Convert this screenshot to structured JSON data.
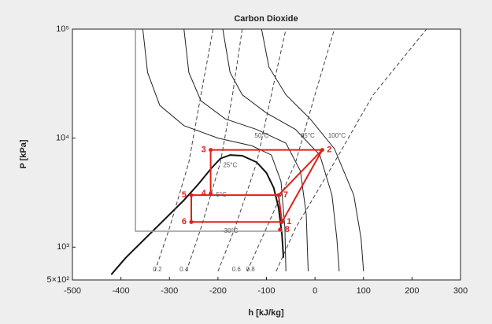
{
  "chart_data": {
    "type": "line",
    "title": "Carbon Dioxide",
    "xlabel": "h [kJ/kg]",
    "ylabel": "P [kPa]",
    "xlim": [
      -500,
      300
    ],
    "xticks": [
      -500,
      -400,
      -300,
      -200,
      -100,
      0,
      100,
      200,
      300
    ],
    "ylim": [
      500,
      100000
    ],
    "ylog": true,
    "yticks": [
      {
        "value": 500,
        "label": "5×10²"
      },
      {
        "value": 1000,
        "label": "10³"
      },
      {
        "value": 10000,
        "label": "10⁴"
      },
      {
        "value": 100000,
        "label": "10⁵"
      }
    ],
    "series": [
      {
        "color": "#111111",
        "width": 2,
        "dash": false,
        "x": [
          -420,
          -390,
          -350,
          -310,
          -270,
          -240,
          -215,
          -195,
          -175,
          -150,
          -120,
          -100,
          -85,
          -75,
          -68,
          -65
        ],
        "y": [
          560,
          800,
          1200,
          1800,
          2700,
          3800,
          5200,
          6500,
          7000,
          6900,
          6000,
          4800,
          3500,
          2300,
          1300,
          800
        ]
      },
      {
        "color": "#999999",
        "width": 1.5,
        "dash": false,
        "x": [
          -370,
          -370,
          -65
        ],
        "y": [
          100000,
          1400,
          1400
        ]
      },
      {
        "color": "#222222",
        "width": 1,
        "dash": false,
        "x": [
          -355,
          -345,
          -320,
          -270,
          -200,
          -130,
          -90,
          -70,
          -62,
          -60
        ],
        "y": [
          100000,
          40000,
          20000,
          13000,
          10000,
          8500,
          7000,
          4000,
          1500,
          600
        ]
      },
      {
        "color": "#222222",
        "width": 1,
        "dash": false,
        "x": [
          -270,
          -260,
          -235,
          -185,
          -120,
          -60,
          -30,
          -18,
          -14
        ],
        "y": [
          100000,
          40000,
          22000,
          15000,
          12000,
          9000,
          5000,
          2000,
          600
        ]
      },
      {
        "color": "#222222",
        "width": 1,
        "dash": false,
        "x": [
          -190,
          -175,
          -150,
          -100,
          -40,
          10,
          35,
          45,
          50
        ],
        "y": [
          100000,
          40000,
          25000,
          17000,
          12000,
          7000,
          3000,
          1200,
          600
        ]
      },
      {
        "color": "#222222",
        "width": 1,
        "dash": false,
        "x": [
          -110,
          -95,
          -60,
          -10,
          40,
          80,
          95,
          100
        ],
        "y": [
          100000,
          45000,
          25000,
          15000,
          8000,
          3000,
          1200,
          600
        ]
      },
      {
        "color": "#444444",
        "width": 1,
        "dash": true,
        "x": [
          -330,
          -300,
          -260,
          -235,
          -210
        ],
        "y": [
          600,
          1500,
          6000,
          25000,
          100000
        ]
      },
      {
        "color": "#444444",
        "width": 1,
        "dash": true,
        "x": [
          -265,
          -235,
          -195,
          -170,
          -150
        ],
        "y": [
          600,
          1500,
          6000,
          25000,
          100000
        ]
      },
      {
        "color": "#444444",
        "width": 1,
        "dash": true,
        "x": [
          -200,
          -165,
          -120,
          -90,
          -60
        ],
        "y": [
          600,
          1500,
          6000,
          25000,
          100000
        ]
      },
      {
        "color": "#444444",
        "width": 1,
        "dash": true,
        "x": [
          -140,
          -100,
          -40,
          0,
          40
        ],
        "y": [
          600,
          1500,
          6000,
          25000,
          100000
        ]
      },
      {
        "color": "#444444",
        "width": 1,
        "dash": true,
        "x": [
          -80,
          -40,
          40,
          120,
          230
        ],
        "y": [
          600,
          1500,
          6000,
          25000,
          100000
        ]
      },
      {
        "color": "#e0201a",
        "width": 2,
        "dash": false,
        "x": [
          -255,
          -68,
          15,
          -215,
          -215,
          null,
          -255,
          -75,
          15,
          null,
          -255,
          -255,
          null,
          -68,
          -75
        ],
        "y": [
          1700,
          1700,
          7800,
          7800,
          3100,
          null,
          3000,
          3000,
          7800,
          null,
          3000,
          1700,
          null,
          1700,
          3000
        ]
      }
    ],
    "points": [
      {
        "label": "1",
        "x": -68,
        "y": 1700
      },
      {
        "label": "2",
        "x": 15,
        "y": 7800
      },
      {
        "label": "3",
        "x": -215,
        "y": 7800
      },
      {
        "label": "4",
        "x": -215,
        "y": 3100
      },
      {
        "label": "5",
        "x": -255,
        "y": 3000
      },
      {
        "label": "6",
        "x": -255,
        "y": 1700
      },
      {
        "label": "7",
        "x": -75,
        "y": 3000
      },
      {
        "label": "8",
        "x": -72,
        "y": 1450
      }
    ],
    "point_color": "#e0201a",
    "annotations": [
      {
        "text": "-30°C",
        "x": -175,
        "y": 1400
      },
      {
        "text": "-5°C",
        "x": -195,
        "y": 3000
      },
      {
        "text": "25°C",
        "x": -175,
        "y": 5600
      },
      {
        "text": "50°C",
        "x": -110,
        "y": 10500
      },
      {
        "text": "85°C",
        "x": -15,
        "y": 10500
      },
      {
        "text": "100°C",
        "x": 45,
        "y": 10500
      },
      {
        "text": "0.2",
        "x": -325,
        "y": 620
      },
      {
        "text": "0.4",
        "x": -270,
        "y": 620
      },
      {
        "text": "0.6",
        "x": -162,
        "y": 620
      },
      {
        "text": "0.8",
        "x": -133,
        "y": 620
      }
    ]
  }
}
